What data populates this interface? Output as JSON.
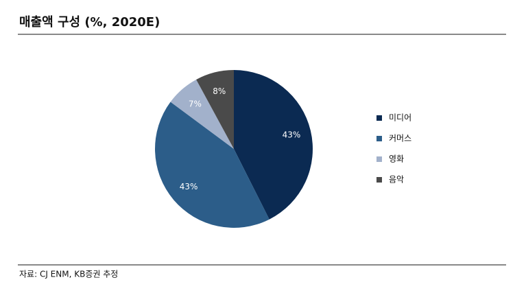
{
  "chart_data": {
    "type": "pie",
    "title": "매출액 구성 (%, 2020E)",
    "categories": [
      "미디어",
      "커머스",
      "영화",
      "음악"
    ],
    "values": [
      43,
      43,
      7,
      8
    ],
    "value_labels": [
      "43%",
      "43%",
      "7%",
      "8%"
    ],
    "colors": [
      "#0b2a52",
      "#2c5d89",
      "#a2b1cb",
      "#4a4a4a"
    ],
    "legend": "right",
    "source": "자료: CJ ENM, KB증권 추정"
  }
}
